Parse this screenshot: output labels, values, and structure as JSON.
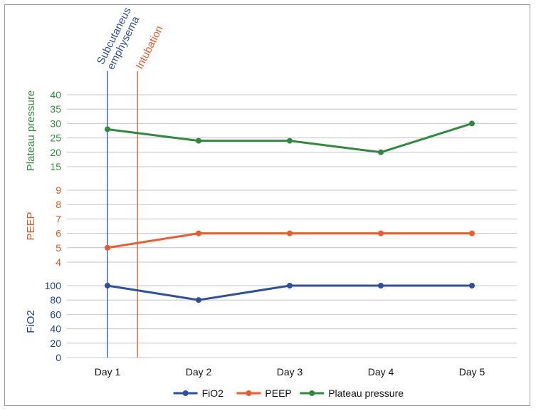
{
  "chart_data": {
    "type": "line",
    "categories": [
      "Day 1",
      "Day 2",
      "Day 3",
      "Day 4",
      "Day 5"
    ],
    "panels": [
      {
        "key": "plateau",
        "ylabel": "Plateau pressure",
        "ticks": [
          15,
          20,
          25,
          30,
          35,
          40
        ],
        "ylim": [
          15,
          40
        ],
        "color": "#2e8b3a"
      },
      {
        "key": "peep",
        "ylabel": "PEEP",
        "ticks": [
          4,
          5,
          6,
          7,
          8,
          9
        ],
        "ylim": [
          4,
          9
        ],
        "color": "#e8531f"
      },
      {
        "key": "fio2",
        "ylabel": "FiO2",
        "ticks": [
          0,
          20,
          40,
          60,
          80,
          100
        ],
        "ylim": [
          0,
          100
        ],
        "color": "#1f3f94"
      }
    ],
    "series": [
      {
        "name": "FiO2",
        "panel": "fio2",
        "color": "#2c4fa3",
        "values": [
          100,
          80,
          100,
          100,
          100
        ]
      },
      {
        "name": "PEEP",
        "panel": "peep",
        "color": "#f05a28",
        "values": [
          5,
          6,
          6,
          6,
          6
        ]
      },
      {
        "name": "Plateau pressure",
        "panel": "plateau",
        "color": "#2f8a3b",
        "values": [
          28,
          24,
          24,
          20,
          30
        ]
      }
    ],
    "annotations": [
      {
        "label": "Subcutaneus emphysema",
        "lines": [
          "Subcutaneus",
          "emphysema"
        ],
        "x": 1.0,
        "color": "#2c4fa3"
      },
      {
        "label": "Intubation",
        "lines": [
          "Intubation"
        ],
        "x": 1.33,
        "color": "#f05a28"
      }
    ],
    "legend_position": "bottom-center",
    "grid": true
  }
}
